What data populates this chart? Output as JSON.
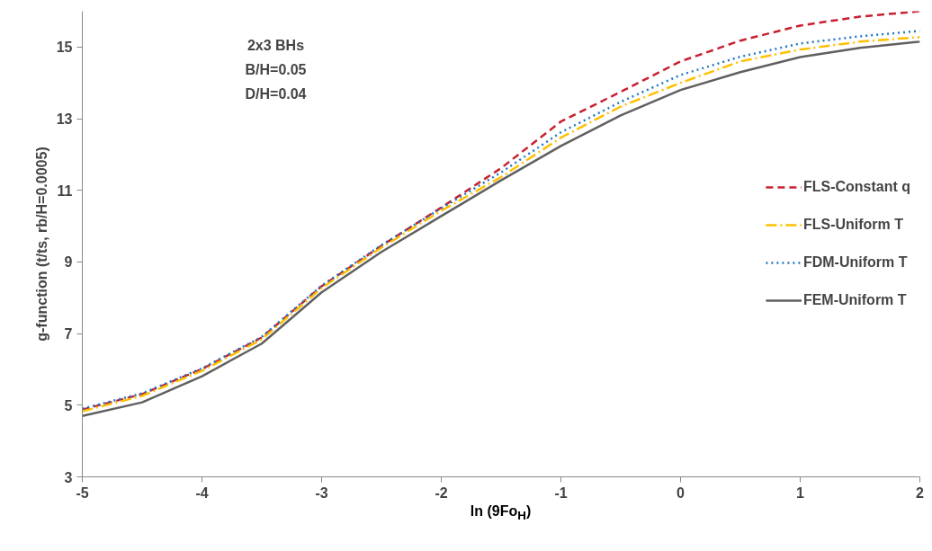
{
  "chart_data": {
    "type": "line",
    "xlabel": "ln (9Fo$_{H}$)",
    "ylabel": "g-function (t/ts, rb/H=0.0005)",
    "annotations": [
      "2x3 BHs",
      "B/H=0.05",
      "D/H=0.04"
    ],
    "x": [
      -5,
      -4.5,
      -4,
      -3.5,
      -3,
      -2.5,
      -2,
      -1.5,
      -1,
      -0.5,
      0,
      0.5,
      1,
      1.5,
      2
    ],
    "series": [
      {
        "name": "FLS-Constant q",
        "color": "#c8202f",
        "line_style": "dashed",
        "values": [
          4.88,
          5.31,
          6.01,
          6.89,
          8.32,
          9.45,
          10.52,
          11.62,
          12.92,
          13.75,
          14.6,
          15.18,
          15.6,
          15.85,
          16.0
        ]
      },
      {
        "name": "FLS-Uniform T",
        "color": "#ffc000",
        "line_style": "dashdot",
        "values": [
          4.83,
          5.26,
          5.96,
          6.84,
          8.27,
          9.4,
          10.43,
          11.37,
          12.47,
          13.34,
          14.0,
          14.6,
          14.93,
          15.15,
          15.28
        ]
      },
      {
        "name": "FDM-Uniform T",
        "color": "#1f77c4",
        "line_style": "dotted",
        "values": [
          4.9,
          5.33,
          6.03,
          6.91,
          8.34,
          9.47,
          10.5,
          11.5,
          12.62,
          13.47,
          14.22,
          14.73,
          15.1,
          15.3,
          15.45
        ]
      },
      {
        "name": "FEM-Uniform T",
        "color": "#606060",
        "line_style": "solid",
        "values": [
          4.7,
          5.08,
          5.81,
          6.72,
          8.15,
          9.28,
          10.28,
          11.28,
          12.24,
          13.09,
          13.8,
          14.3,
          14.72,
          14.98,
          15.15
        ]
      }
    ],
    "xlim": [
      -5,
      2
    ],
    "xticks": [
      -5,
      -4,
      -3,
      -2,
      -1,
      0,
      1,
      2
    ],
    "ylim": [
      3,
      16
    ],
    "yticks": [
      3,
      5,
      7,
      9,
      11,
      13,
      15
    ],
    "grid": false,
    "legend": "right",
    "marker": "none"
  }
}
